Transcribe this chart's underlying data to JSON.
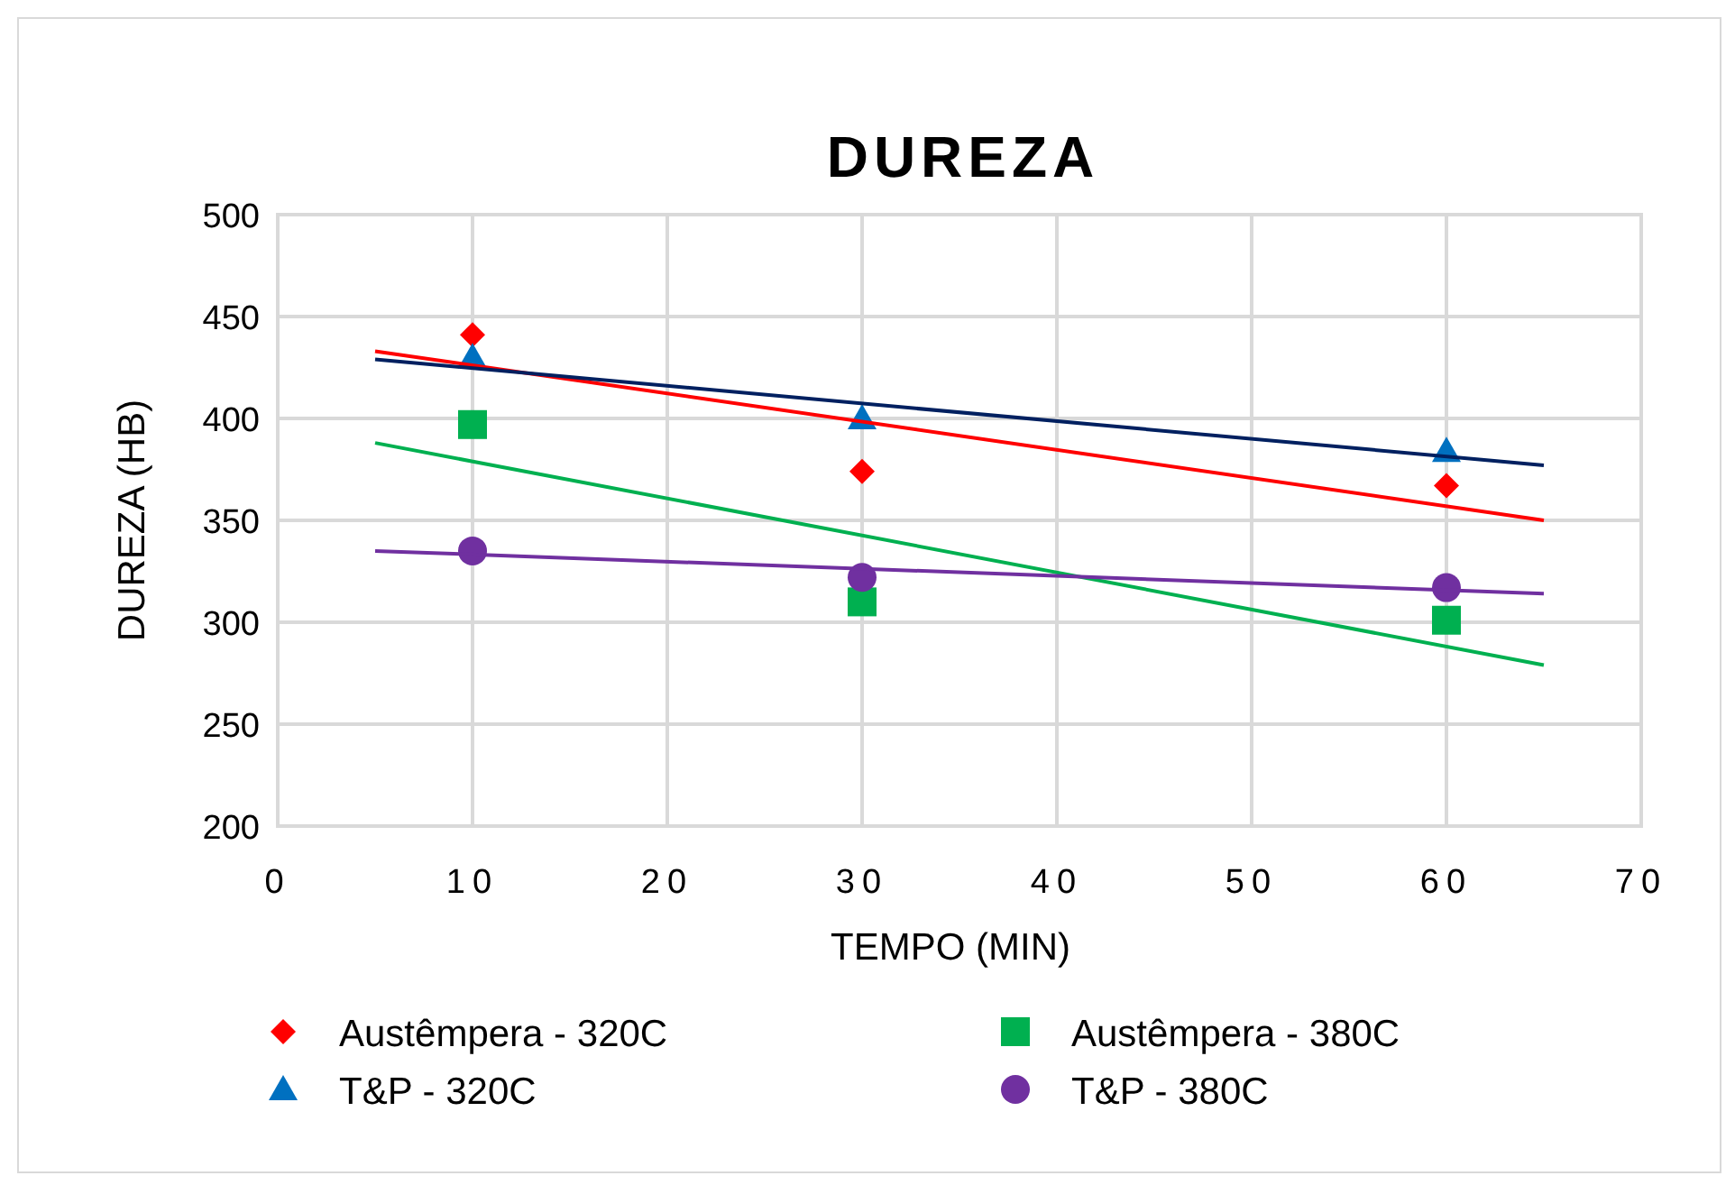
{
  "chart_data": {
    "type": "scatter",
    "title": "DUREZA",
    "xlabel": "TEMPO (MIN)",
    "ylabel": "DUREZA (HB)",
    "xlim": [
      0,
      70
    ],
    "xticks": [
      0,
      10,
      20,
      30,
      40,
      50,
      60,
      70
    ],
    "ylim": [
      200,
      500
    ],
    "yticks": [
      200,
      250,
      300,
      350,
      400,
      450,
      500
    ],
    "grid": true,
    "legend": "bottom",
    "series": [
      {
        "name": "Austêmpera - 320C",
        "color": "#ff0000",
        "marker": "diamond",
        "x": [
          10,
          30,
          60
        ],
        "values": [
          441,
          374,
          367
        ]
      },
      {
        "name": "Austêmpera - 380C",
        "color": "#00b050",
        "marker": "square",
        "x": [
          10,
          30,
          60
        ],
        "values": [
          397,
          310,
          301
        ]
      },
      {
        "name": "T&P - 320C",
        "color": "#0070c0",
        "marker": "triangle",
        "x": [
          10,
          30,
          60
        ],
        "values": [
          430,
          400,
          384
        ]
      },
      {
        "name": "T&P - 380C",
        "color": "#7030a0",
        "marker": "circle",
        "x": [
          10,
          30,
          60
        ],
        "values": [
          335,
          322,
          317
        ]
      },
      {
        "type": "line",
        "color": "#ff0000",
        "marker": "none",
        "x": [
          5,
          65
        ],
        "values": [
          433,
          350
        ]
      },
      {
        "type": "line",
        "color": "#002060",
        "marker": "none",
        "x": [
          5,
          65
        ],
        "values": [
          429,
          377
        ]
      },
      {
        "type": "line",
        "color": "#00b050",
        "marker": "none",
        "x": [
          5,
          65
        ],
        "values": [
          388,
          279
        ]
      },
      {
        "type": "line",
        "color": "#7030a0",
        "marker": "none",
        "x": [
          5,
          65
        ],
        "values": [
          335,
          314
        ]
      }
    ]
  }
}
